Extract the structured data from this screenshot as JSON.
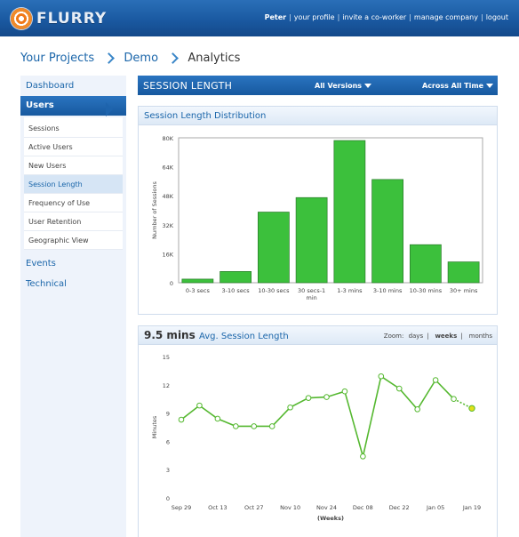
{
  "header": {
    "logo_text": "FLURRY",
    "user_name": "Peter",
    "links": [
      "your profile",
      "invite a co-worker",
      "manage company",
      "logout"
    ]
  },
  "breadcrumb": [
    "Your Projects",
    "Demo",
    "Analytics"
  ],
  "sidebar": {
    "top_items": [
      "Dashboard",
      "Users"
    ],
    "sub_items": [
      "Sessions",
      "Active Users",
      "New Users",
      "Session Length",
      "Frequency of Use",
      "User Retention",
      "Geographic View"
    ],
    "active_sub": "Session Length",
    "bottom_items": [
      "Events",
      "Technical"
    ]
  },
  "panel": {
    "title": "SESSION LENGTH",
    "versions_label": "All Versions",
    "time_label": "Across All Time"
  },
  "distribution": {
    "title": "Session Length Distribution"
  },
  "avg": {
    "value": "9.5 mins",
    "label": "Avg. Session Length",
    "zoom_label": "Zoom:",
    "zoom_options": [
      "days",
      "weeks",
      "months"
    ],
    "zoom_selected": "weeks"
  },
  "colors": {
    "brand_blue": "#1b66aa",
    "bar_green": "#3cc03c",
    "line_green": "#55b830"
  },
  "chart_data": [
    {
      "type": "bar",
      "ylabel": "Number of Sessions",
      "categories": [
        "0-3 secs",
        "3-10 secs",
        "10-30 secs",
        "30 secs-1 min",
        "1-3 mins",
        "3-10 mins",
        "10-30 mins",
        "30+ mins"
      ],
      "values": [
        2000,
        6200,
        39000,
        47000,
        78500,
        57000,
        21000,
        11500
      ],
      "ylim": [
        0,
        80000
      ],
      "yticks": [
        0,
        16000,
        32000,
        48000,
        64000,
        80000
      ],
      "ytick_labels": [
        "0",
        "16K",
        "32K",
        "48K",
        "64K",
        "80K"
      ]
    },
    {
      "type": "line",
      "ylabel": "Minutes",
      "xlabel": "(Weeks)",
      "x_tick_labels": [
        "Sep 29",
        "Oct 13",
        "Oct 27",
        "Nov 10",
        "Nov 24",
        "Dec 08",
        "Dec 22",
        "Jan 05",
        "Jan 19"
      ],
      "values": [
        8.3,
        9.8,
        8.4,
        7.6,
        7.6,
        7.6,
        9.6,
        10.6,
        10.7,
        11.3,
        4.4,
        12.9,
        11.6,
        9.4,
        12.5,
        10.5,
        9.5
      ],
      "ylim": [
        0,
        15
      ],
      "yticks": [
        0,
        3,
        6,
        9,
        12,
        15
      ]
    }
  ]
}
